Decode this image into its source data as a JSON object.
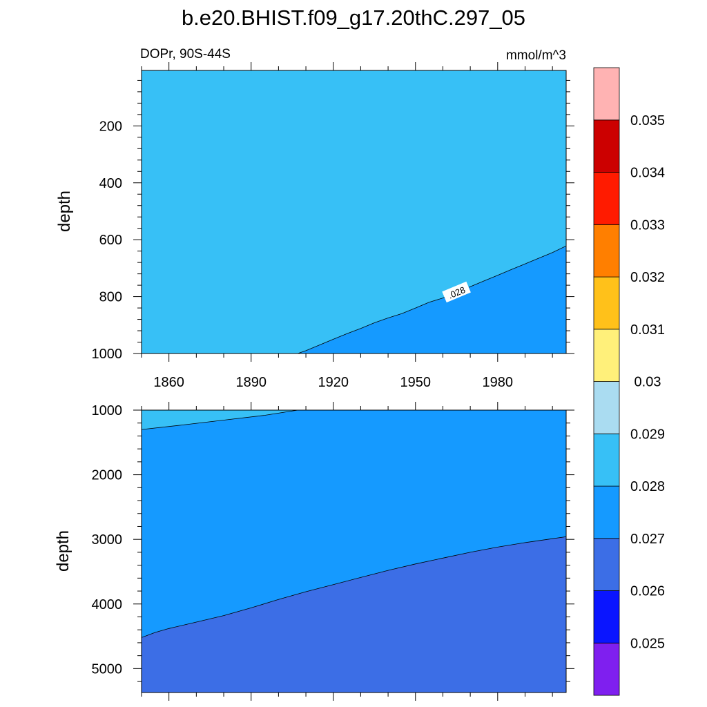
{
  "title": "b.e20.BHIST.f09_g17.20thC.297_05",
  "left_string": "DOPr, 90S-44S",
  "right_string": "mmol/m^3",
  "colors": {
    "level_fills": [
      "#7f1fef",
      "#0a15ff",
      "#3c6ee6",
      "#159aff",
      "#37c0f6",
      "#aadcf1",
      "#fff07a",
      "#ffc11a",
      "#ff7f00",
      "#ff1b00",
      "#cc0000",
      "#ffb3b3"
    ]
  },
  "colorbar": {
    "labels": [
      "0.025",
      "0.026",
      "0.027",
      "0.028",
      "0.029",
      "0.03",
      "0.031",
      "0.032",
      "0.033",
      "0.034",
      "0.035"
    ]
  },
  "chart_data": [
    {
      "type": "contour",
      "panel": "upper",
      "xlabel": "",
      "ylabel": "depth",
      "xlim": [
        1850,
        2005
      ],
      "ylim": [
        1000,
        5
      ],
      "y_reversed": true,
      "x_ticks": [
        "1860",
        "1890",
        "1920",
        "1950",
        "1980"
      ],
      "y_ticks": [
        "200",
        "400",
        "600",
        "800",
        "1000"
      ],
      "regions": [
        {
          "range": "0.028-0.029",
          "color": "#37c0f6",
          "region": "above boundary"
        },
        {
          "range": "0.027-0.028",
          "color": "#159aff",
          "region": "below boundary"
        }
      ],
      "contour_0028": {
        "x": [
          1907,
          1910,
          1915,
          1920,
          1925,
          1930,
          1935,
          1940,
          1945,
          1950,
          1955,
          1960,
          1965,
          1970,
          1975,
          1980,
          1985,
          1990,
          1995,
          2000,
          2005
        ],
        "depth": [
          1000,
          990,
          970,
          950,
          930,
          912,
          892,
          875,
          860,
          840,
          820,
          805,
          785,
          765,
          745,
          725,
          705,
          685,
          665,
          645,
          622
        ]
      },
      "contour_labels": [
        ".028"
      ]
    },
    {
      "type": "contour",
      "panel": "lower",
      "xlabel": "",
      "ylabel": "depth",
      "xlim": [
        1850,
        2005
      ],
      "ylim": [
        5370,
        1000
      ],
      "y_reversed": true,
      "y_ticks": [
        "1000",
        "2000",
        "3000",
        "4000",
        "5000"
      ],
      "regions": [
        {
          "range": "0.028-0.029",
          "color": "#37c0f6",
          "region": "top-left wedge"
        },
        {
          "range": "0.027-0.028",
          "color": "#159aff",
          "region": "middle band"
        },
        {
          "range": "0.026-0.027",
          "color": "#3c6ee6",
          "region": "deep layer"
        }
      ],
      "contour_0028": {
        "x": [
          1850,
          1865,
          1880,
          1895,
          1907
        ],
        "depth": [
          1300,
          1230,
          1155,
          1080,
          1000
        ]
      },
      "contour_0027": {
        "x": [
          1850,
          1855,
          1860,
          1870,
          1880,
          1890,
          1900,
          1910,
          1920,
          1930,
          1940,
          1950,
          1960,
          1970,
          1980,
          1990,
          2000,
          2005
        ],
        "depth": [
          4520,
          4440,
          4380,
          4280,
          4180,
          4060,
          3930,
          3810,
          3700,
          3590,
          3480,
          3380,
          3290,
          3200,
          3120,
          3050,
          2990,
          2960
        ]
      }
    }
  ]
}
